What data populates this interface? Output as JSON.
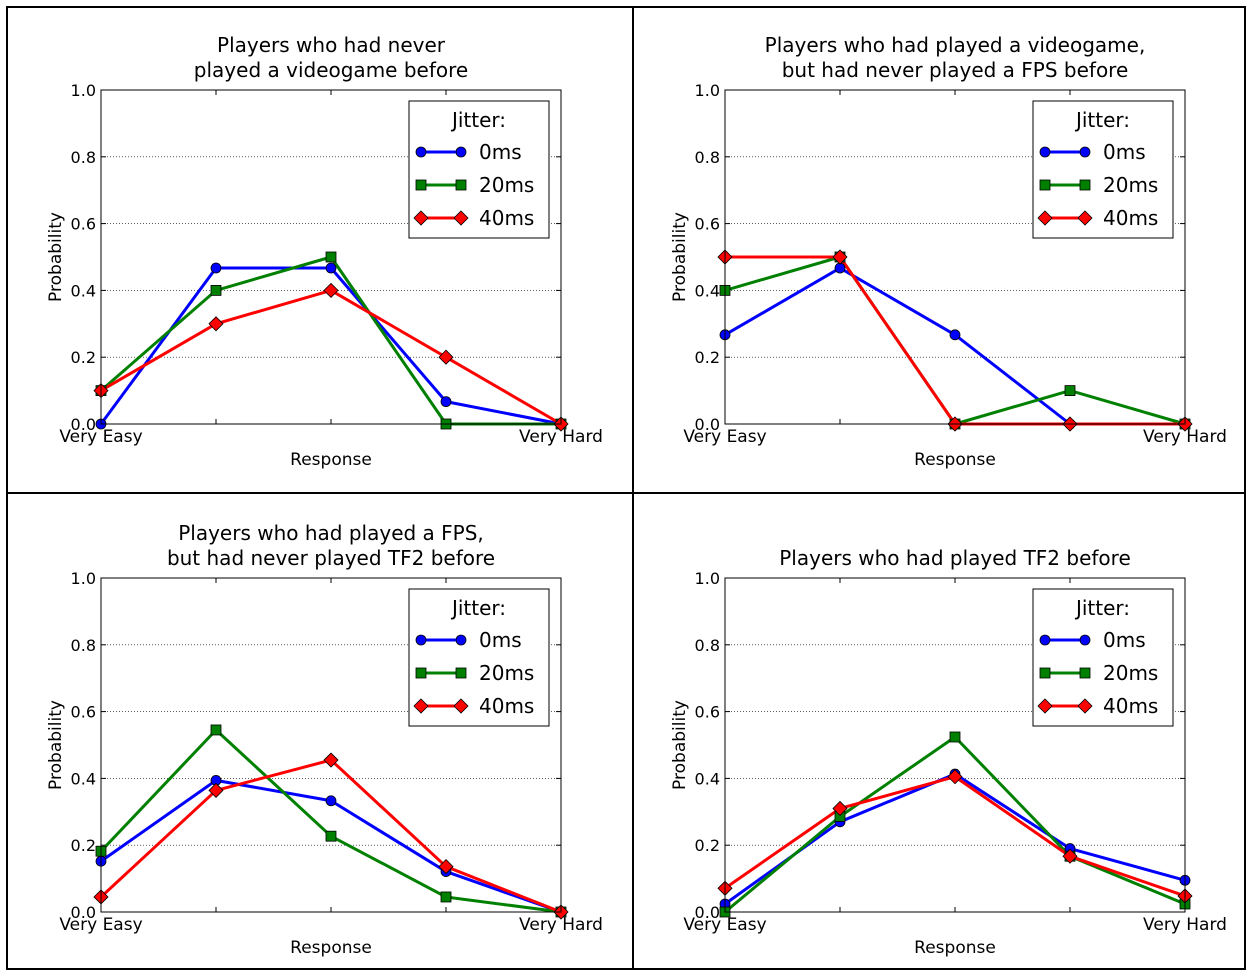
{
  "legend_title": "Jitter:",
  "chart_data": [
    {
      "type": "line",
      "title_lines": [
        "Players who had never",
        "played a videogame before"
      ],
      "xlabel": "Response",
      "ylabel": "Probability",
      "ylim": [
        0.0,
        1.0
      ],
      "yticks": [
        "0.0",
        "0.2",
        "0.4",
        "0.6",
        "0.8",
        "1.0"
      ],
      "xtick_labels": [
        "Very Easy",
        "",
        "",
        "",
        "Very Hard"
      ],
      "legend_position": "top-right",
      "grid": "horizontal dotted",
      "series": [
        {
          "name": "0ms",
          "color": "#0000ff",
          "marker": "circle",
          "values": [
            0.0,
            0.467,
            0.467,
            0.067,
            0.0
          ]
        },
        {
          "name": "20ms",
          "color": "#008000",
          "marker": "square",
          "values": [
            0.1,
            0.4,
            0.5,
            0.0,
            0.0
          ]
        },
        {
          "name": "40ms",
          "color": "#ff0000",
          "marker": "diamond",
          "values": [
            0.1,
            0.3,
            0.4,
            0.2,
            0.0
          ]
        }
      ]
    },
    {
      "type": "line",
      "title_lines": [
        "Players who had played a videogame,",
        "but had never played a FPS before"
      ],
      "xlabel": "Response",
      "ylabel": "Probability",
      "ylim": [
        0.0,
        1.0
      ],
      "yticks": [
        "0.0",
        "0.2",
        "0.4",
        "0.6",
        "0.8",
        "1.0"
      ],
      "xtick_labels": [
        "Very Easy",
        "",
        "",
        "",
        "Very Hard"
      ],
      "legend_position": "top-right",
      "grid": "horizontal dotted",
      "series": [
        {
          "name": "0ms",
          "color": "#0000ff",
          "marker": "circle",
          "values": [
            0.267,
            0.467,
            0.267,
            0.0,
            0.0
          ]
        },
        {
          "name": "20ms",
          "color": "#008000",
          "marker": "square",
          "values": [
            0.4,
            0.5,
            0.0,
            0.1,
            0.0
          ]
        },
        {
          "name": "40ms",
          "color": "#ff0000",
          "marker": "diamond",
          "values": [
            0.5,
            0.5,
            0.0,
            0.0,
            0.0
          ]
        }
      ]
    },
    {
      "type": "line",
      "title_lines": [
        "Players who had played a FPS,",
        "but had never played TF2 before"
      ],
      "xlabel": "Response",
      "ylabel": "Probability",
      "ylim": [
        0.0,
        1.0
      ],
      "yticks": [
        "0.0",
        "0.2",
        "0.4",
        "0.6",
        "0.8",
        "1.0"
      ],
      "xtick_labels": [
        "Very Easy",
        "",
        "",
        "",
        "Very Hard"
      ],
      "legend_position": "top-right",
      "grid": "horizontal dotted",
      "series": [
        {
          "name": "0ms",
          "color": "#0000ff",
          "marker": "circle",
          "values": [
            0.152,
            0.394,
            0.333,
            0.121,
            0.0
          ]
        },
        {
          "name": "20ms",
          "color": "#008000",
          "marker": "square",
          "values": [
            0.182,
            0.545,
            0.227,
            0.045,
            0.0
          ]
        },
        {
          "name": "40ms",
          "color": "#ff0000",
          "marker": "diamond",
          "values": [
            0.045,
            0.364,
            0.455,
            0.136,
            0.0
          ]
        }
      ]
    },
    {
      "type": "line",
      "title_lines": [
        "Players who had played TF2 before"
      ],
      "xlabel": "Response",
      "ylabel": "Probability",
      "ylim": [
        0.0,
        1.0
      ],
      "yticks": [
        "0.0",
        "0.2",
        "0.4",
        "0.6",
        "0.8",
        "1.0"
      ],
      "xtick_labels": [
        "Very Easy",
        "",
        "",
        "",
        "Very Hard"
      ],
      "legend_position": "top-right",
      "grid": "horizontal dotted",
      "series": [
        {
          "name": "0ms",
          "color": "#0000ff",
          "marker": "circle",
          "values": [
            0.024,
            0.27,
            0.413,
            0.19,
            0.095
          ]
        },
        {
          "name": "20ms",
          "color": "#008000",
          "marker": "square",
          "values": [
            0.0,
            0.286,
            0.524,
            0.167,
            0.024
          ]
        },
        {
          "name": "40ms",
          "color": "#ff0000",
          "marker": "diamond",
          "values": [
            0.071,
            0.31,
            0.405,
            0.167,
            0.048
          ]
        }
      ]
    }
  ]
}
